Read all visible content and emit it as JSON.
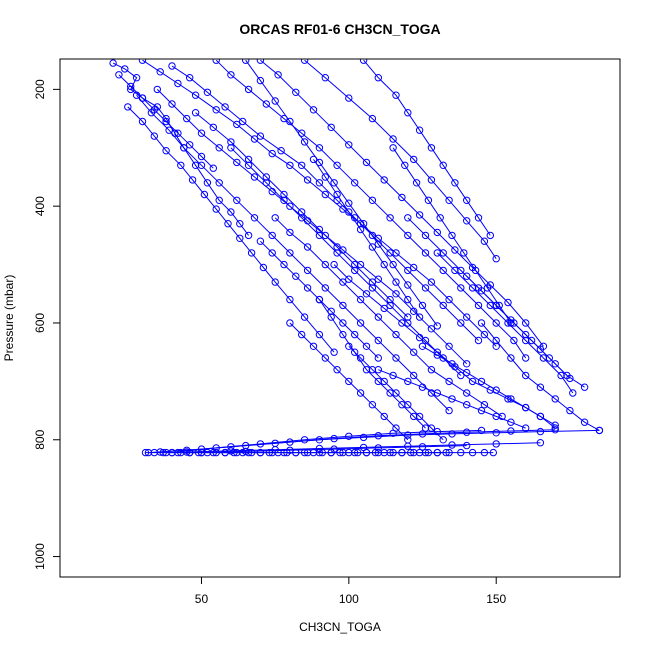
{
  "chart_data": {
    "type": "line",
    "title": "ORCAS RF01-6 CH3CN_TOGA",
    "xlabel": "CH3CN_TOGA",
    "ylabel": "Pressure (mbar)",
    "xlim": [
      2,
      192
    ],
    "ylim": [
      1035,
      148
    ],
    "y_axis_inverted": true,
    "x_ticks": [
      50,
      100,
      150
    ],
    "y_ticks": [
      200,
      400,
      600,
      800,
      1000
    ],
    "marker": "open-circle",
    "line_color": "#0000ff",
    "series": [
      {
        "x": [
          20,
          24,
          28,
          26,
          30,
          35,
          38,
          41,
          44,
          48,
          52,
          56,
          60,
          63,
          66
        ],
        "y": [
          155,
          165,
          180,
          200,
          215,
          230,
          250,
          275,
          300,
          330,
          360,
          390,
          410,
          430,
          450
        ]
      },
      {
        "x": [
          30,
          36,
          42,
          48,
          55,
          62,
          68,
          74,
          80,
          86,
          92,
          98,
          104,
          110,
          116,
          122,
          128,
          134,
          140,
          146,
          150
        ],
        "y": [
          150,
          170,
          190,
          210,
          235,
          260,
          285,
          310,
          330,
          355,
          380,
          405,
          430,
          455,
          480,
          505,
          530,
          560,
          590,
          620,
          640
        ]
      },
      {
        "x": [
          40,
          46,
          52,
          58,
          64,
          70,
          77,
          84,
          90,
          96,
          102,
          108,
          114,
          120,
          126,
          132,
          138,
          144
        ],
        "y": [
          160,
          180,
          205,
          230,
          255,
          280,
          305,
          330,
          360,
          390,
          420,
          450,
          480,
          510,
          540,
          570,
          600,
          630
        ]
      },
      {
        "x": [
          55,
          60,
          66,
          72,
          78,
          84,
          90,
          96,
          102,
          108,
          114,
          120,
          126,
          132,
          138,
          144,
          150,
          156,
          160
        ],
        "y": [
          150,
          175,
          200,
          225,
          250,
          275,
          300,
          330,
          360,
          390,
          420,
          450,
          480,
          510,
          540,
          570,
          600,
          630,
          660
        ]
      },
      {
        "x": [
          70,
          76,
          82,
          88,
          94,
          100,
          106,
          112,
          118,
          124,
          130,
          136,
          142,
          148,
          154,
          160,
          166
        ],
        "y": [
          150,
          175,
          205,
          235,
          265,
          295,
          325,
          355,
          385,
          415,
          445,
          475,
          505,
          535,
          565,
          600,
          640
        ]
      },
      {
        "x": [
          25,
          30,
          34,
          38,
          43,
          47,
          51,
          55,
          59,
          63,
          67,
          71,
          75,
          80,
          85,
          90,
          95
        ],
        "y": [
          230,
          255,
          280,
          305,
          330,
          355,
          380,
          405,
          430,
          455,
          480,
          505,
          530,
          560,
          590,
          620,
          650
        ]
      },
      {
        "x": [
          35,
          40,
          45,
          50,
          56,
          62,
          68,
          74,
          80,
          86,
          92,
          98,
          104,
          110,
          116,
          122,
          128,
          134,
          140
        ],
        "y": [
          200,
          225,
          250,
          275,
          300,
          325,
          350,
          375,
          400,
          425,
          450,
          475,
          500,
          525,
          550,
          580,
          610,
          640,
          670
        ]
      },
      {
        "x": [
          85,
          92,
          100,
          108,
          115,
          122,
          128,
          134,
          140,
          146,
          150
        ],
        "y": [
          150,
          180,
          215,
          250,
          285,
          320,
          355,
          390,
          425,
          460,
          490
        ]
      },
      {
        "x": [
          105,
          110,
          116,
          120,
          124,
          128,
          132,
          136,
          140,
          144,
          148
        ],
        "y": [
          150,
          180,
          210,
          240,
          270,
          300,
          330,
          360,
          390,
          420,
          450
        ]
      },
      {
        "x": [
          48,
          54,
          60,
          66,
          72,
          78,
          84,
          90,
          96,
          102,
          108,
          114,
          120
        ],
        "y": [
          240,
          265,
          290,
          320,
          350,
          380,
          410,
          440,
          470,
          500,
          530,
          560,
          590
        ]
      },
      {
        "x": [
          60,
          66,
          72,
          78,
          84,
          90,
          96,
          102,
          108,
          114,
          120,
          126,
          132,
          138
        ],
        "y": [
          300,
          330,
          360,
          390,
          420,
          450,
          480,
          510,
          540,
          570,
          600,
          630,
          660,
          690
        ]
      },
      {
        "x": [
          75,
          80,
          86,
          92,
          98,
          104,
          110,
          116,
          122,
          128,
          134,
          140,
          146,
          152
        ],
        "y": [
          420,
          445,
          470,
          500,
          530,
          560,
          590,
          620,
          650,
          680,
          700,
          720,
          740,
          760
        ]
      },
      {
        "x": [
          95,
          100,
          106,
          112,
          118,
          124,
          130,
          136,
          142,
          148,
          154,
          160,
          165,
          170
        ],
        "y": [
          500,
          525,
          550,
          575,
          600,
          625,
          650,
          675,
          700,
          715,
          730,
          745,
          760,
          780
        ]
      },
      {
        "x": [
          120,
          126,
          132,
          138,
          144,
          150,
          156,
          162,
          168,
          174,
          180
        ],
        "y": [
          420,
          450,
          480,
          510,
          540,
          570,
          600,
          630,
          660,
          690,
          710
        ]
      },
      {
        "x": [
          130,
          136,
          142,
          148,
          154,
          160,
          166,
          172,
          176
        ],
        "y": [
          480,
          510,
          540,
          570,
          600,
          630,
          660,
          690,
          720
        ]
      },
      {
        "x": [
          145,
          150,
          155,
          160,
          165,
          170,
          175,
          180,
          185
        ],
        "y": [
          600,
          630,
          660,
          690,
          710,
          730,
          750,
          770,
          784
        ]
      },
      {
        "x": [
          100,
          104,
          108,
          112,
          116,
          120,
          124,
          128,
          132
        ],
        "y": [
          640,
          660,
          680,
          700,
          720,
          740,
          760,
          780,
          800
        ]
      },
      {
        "x": [
          90,
          94,
          98,
          102,
          106,
          110,
          114,
          118,
          122,
          126
        ],
        "y": [
          560,
          590,
          620,
          650,
          680,
          700,
          720,
          740,
          760,
          780
        ]
      },
      {
        "x": [
          80,
          84,
          88,
          92,
          96,
          100,
          104,
          108,
          112,
          116,
          120
        ],
        "y": [
          600,
          620,
          640,
          660,
          680,
          700,
          720,
          740,
          760,
          780,
          800
        ]
      },
      {
        "x": [
          110,
          115,
          120,
          125,
          130,
          135,
          140,
          145,
          150,
          155,
          160
        ],
        "y": [
          680,
          690,
          700,
          710,
          720,
          730,
          740,
          750,
          760,
          770,
          780
        ]
      },
      {
        "x": [
          32,
          45,
          60,
          75,
          90,
          105,
          120,
          135,
          150,
          165,
          185
        ],
        "y": [
          822,
          818,
          812,
          806,
          800,
          796,
          792,
          790,
          788,
          786,
          784
        ]
      },
      {
        "x": [
          36,
          50,
          65,
          80,
          95,
          110,
          125,
          140,
          155,
          170
        ],
        "y": [
          821,
          816,
          810,
          804,
          798,
          793,
          790,
          787,
          785,
          783
        ]
      },
      {
        "x": [
          40,
          55,
          70,
          85,
          100,
          115,
          130,
          145
        ],
        "y": [
          822,
          814,
          807,
          800,
          794,
          789,
          786,
          784
        ]
      },
      {
        "x": [
          45,
          60,
          75,
          90,
          105,
          120,
          135,
          150,
          165
        ],
        "y": [
          821,
          819,
          817,
          815,
          813,
          811,
          809,
          807,
          805
        ]
      },
      {
        "x": [
          50,
          65,
          80,
          95,
          110,
          125,
          140
        ],
        "y": [
          822,
          820,
          818,
          816,
          814,
          812,
          810
        ]
      },
      {
        "x": [
          31,
          34,
          37,
          40,
          43,
          46,
          49,
          52,
          55,
          58,
          61,
          64,
          67,
          70,
          73,
          76,
          79,
          82,
          85,
          88,
          91,
          94,
          97,
          100,
          103,
          106,
          109,
          112,
          115,
          118,
          121,
          124,
          127,
          130,
          133
        ],
        "y": [
          822,
          822,
          822,
          822,
          822,
          822,
          822,
          822,
          822,
          822,
          822,
          822,
          822,
          822,
          822,
          822,
          822,
          822,
          822,
          822,
          822,
          822,
          822,
          822,
          822,
          822,
          822,
          822,
          822,
          822,
          822,
          822,
          822,
          822,
          822
        ]
      },
      {
        "x": [
          38,
          42,
          46,
          50,
          54,
          58,
          62,
          66,
          70,
          74,
          78,
          82,
          86,
          90,
          94,
          98,
          102,
          106,
          110,
          114,
          118,
          122,
          126,
          130,
          134,
          138,
          142,
          146,
          149
        ],
        "y": [
          822,
          822,
          822,
          822,
          822,
          822,
          822,
          822,
          822,
          822,
          822,
          822,
          822,
          822,
          822,
          822,
          822,
          822,
          822,
          822,
          822,
          822,
          822,
          822,
          822,
          822,
          822,
          822,
          822
        ]
      },
      {
        "x": [
          28,
          33,
          39,
          44,
          50,
          56,
          62,
          68,
          74,
          80,
          86,
          92,
          98,
          104,
          110,
          116,
          122,
          128,
          134
        ],
        "y": [
          210,
          240,
          270,
          300,
          330,
          360,
          390,
          420,
          450,
          480,
          510,
          540,
          570,
          600,
          630,
          660,
          690,
          720,
          750
        ]
      },
      {
        "x": [
          65,
          70,
          75,
          80,
          85,
          90,
          95,
          100,
          105,
          110,
          115,
          120,
          125,
          130
        ],
        "y": [
          150,
          185,
          220,
          255,
          290,
          325,
          360,
          395,
          430,
          465,
          500,
          535,
          570,
          605
        ]
      },
      {
        "x": [
          115,
          119,
          123,
          127,
          131,
          135,
          139,
          143,
          147,
          151,
          155
        ],
        "y": [
          300,
          330,
          360,
          390,
          420,
          450,
          480,
          510,
          540,
          570,
          600
        ]
      },
      {
        "x": [
          88,
          92,
          96,
          100,
          104,
          108,
          112,
          116,
          120,
          124
        ],
        "y": [
          320,
          350,
          380,
          410,
          440,
          470,
          500,
          530,
          560,
          590
        ]
      },
      {
        "x": [
          22,
          26,
          30,
          34,
          38,
          42,
          46,
          50,
          54
        ],
        "y": [
          175,
          195,
          215,
          235,
          255,
          275,
          295,
          315,
          335
        ]
      },
      {
        "x": [
          125,
          130,
          135,
          140,
          145,
          150,
          155,
          160,
          165,
          170
        ],
        "y": [
          640,
          655,
          670,
          685,
          700,
          715,
          730,
          745,
          760,
          775
        ]
      },
      {
        "x": [
          70,
          74,
          78,
          82,
          86,
          90,
          94,
          98,
          102,
          106,
          110
        ],
        "y": [
          460,
          480,
          500,
          520,
          540,
          560,
          580,
          600,
          620,
          640,
          660
        ]
      },
      {
        "x": [
          140,
          145,
          150,
          155,
          160,
          165,
          170,
          175
        ],
        "y": [
          520,
          545,
          570,
          595,
          620,
          645,
          670,
          695
        ]
      }
    ]
  }
}
